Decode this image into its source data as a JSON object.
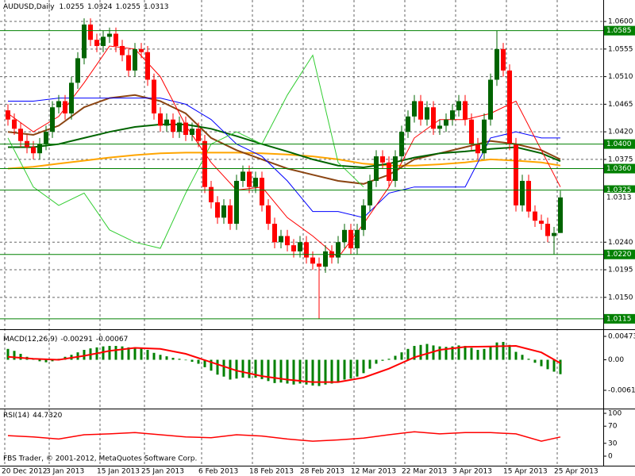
{
  "symbol": "AUDUSD,Daily",
  "copyright": "FBS Trader, © 2001-2012, MetaQuotes Software Corp.",
  "chart_data": [
    {
      "type": "candlestick",
      "categories": [
        "20 Dec 2012",
        null,
        null,
        null,
        null,
        null,
        null,
        "3 Jan 2013",
        null,
        null,
        null,
        null,
        null,
        null,
        null,
        "15 Jan 2013",
        null,
        null,
        null,
        null,
        null,
        null,
        "25 Jan 2013",
        null,
        null,
        null,
        null,
        null,
        null,
        null,
        null,
        "6 Feb 2013",
        null,
        null,
        null,
        null,
        null,
        null,
        null,
        "18 Feb 2013",
        null,
        null,
        null,
        null,
        null,
        null,
        null,
        "28 Feb 2013",
        null,
        null,
        null,
        null,
        null,
        null,
        null,
        "12 Mar 2013",
        null,
        null,
        null,
        null,
        null,
        null,
        null,
        "22 Mar 2013",
        null,
        null,
        null,
        null,
        null,
        null,
        null,
        "3 Apr 2013",
        null,
        null,
        null,
        null,
        null,
        null,
        null,
        "15 Apr 2013",
        null,
        null,
        null,
        null,
        null,
        null,
        null,
        "25 Apr 2013"
      ],
      "open": [
        1.0455,
        1.044,
        1.0425,
        1.0405,
        1.0395,
        1.0385,
        1.04,
        1.042,
        1.046,
        1.047,
        1.045,
        1.05,
        1.054,
        1.0595,
        1.057,
        1.056,
        1.0575,
        1.058,
        1.056,
        1.0545,
        1.052,
        1.0555,
        1.055,
        1.0505,
        1.045,
        1.043,
        1.044,
        1.042,
        1.0435,
        1.0415,
        1.0425,
        1.0405,
        1.033,
        1.0305,
        1.028,
        1.03,
        1.027,
        1.034,
        1.0355,
        1.033,
        1.0345,
        1.03,
        1.027,
        1.024,
        1.025,
        1.0235,
        1.0225,
        1.024,
        1.0215,
        1.0205,
        1.02,
        1.0225,
        1.0215,
        1.024,
        1.026,
        1.023,
        1.026,
        1.03,
        1.034,
        1.038,
        1.037,
        1.034,
        1.038,
        1.042,
        1.0445,
        1.047,
        1.044,
        1.046,
        1.0425,
        1.043,
        1.044,
        1.0455,
        1.047,
        1.044,
        1.04,
        1.0385,
        1.044,
        1.0505,
        1.0555,
        1.052,
        1.04,
        1.03,
        1.034,
        1.029,
        1.0275,
        1.027,
        1.025,
        1.0255
      ],
      "high": [
        1.0465,
        1.045,
        1.0435,
        1.0415,
        1.0405,
        1.041,
        1.043,
        1.047,
        1.048,
        1.048,
        1.051,
        1.055,
        1.0605,
        1.0605,
        1.058,
        1.0585,
        1.059,
        1.059,
        1.057,
        1.0555,
        1.0565,
        1.0565,
        1.056,
        1.0515,
        1.046,
        1.045,
        1.045,
        1.0445,
        1.0445,
        1.0435,
        1.0435,
        1.0415,
        1.034,
        1.0315,
        1.031,
        1.031,
        1.035,
        1.0365,
        1.0365,
        1.0355,
        1.0355,
        1.031,
        1.028,
        1.026,
        1.026,
        1.0245,
        1.025,
        1.025,
        1.0225,
        1.0215,
        1.0235,
        1.0235,
        1.025,
        1.027,
        1.027,
        1.027,
        1.031,
        1.035,
        1.039,
        1.039,
        1.038,
        1.039,
        1.043,
        1.0455,
        1.048,
        1.048,
        1.047,
        1.047,
        1.044,
        1.045,
        1.0465,
        1.048,
        1.048,
        1.045,
        1.041,
        1.045,
        1.0515,
        1.0585,
        1.0565,
        1.053,
        1.041,
        1.035,
        1.035,
        1.03,
        1.0285,
        1.028,
        1.0265,
        1.0324
      ],
      "low": [
        1.043,
        1.0415,
        1.0395,
        1.0385,
        1.0375,
        1.0375,
        1.039,
        1.041,
        1.045,
        1.044,
        1.044,
        1.049,
        1.053,
        1.056,
        1.055,
        1.055,
        1.0565,
        1.055,
        1.0535,
        1.051,
        1.051,
        1.054,
        1.0495,
        1.044,
        1.042,
        1.042,
        1.041,
        1.041,
        1.0405,
        1.0405,
        1.0395,
        1.032,
        1.0295,
        1.027,
        1.027,
        1.026,
        1.026,
        1.033,
        1.032,
        1.032,
        1.029,
        1.026,
        1.023,
        1.023,
        1.0225,
        1.0215,
        1.0215,
        1.0205,
        1.0195,
        1.0115,
        1.019,
        1.0205,
        1.0205,
        1.023,
        1.022,
        1.022,
        1.025,
        1.029,
        1.033,
        1.036,
        1.033,
        1.033,
        1.037,
        1.041,
        1.0435,
        1.043,
        1.043,
        1.0415,
        1.0415,
        1.042,
        1.043,
        1.0445,
        1.043,
        1.039,
        1.0375,
        1.0375,
        1.043,
        1.0495,
        1.051,
        1.039,
        1.029,
        1.029,
        1.028,
        1.0265,
        1.026,
        1.024,
        1.022,
        1.0255
      ],
      "close": [
        1.044,
        1.0425,
        1.0405,
        1.0395,
        1.0385,
        1.04,
        1.042,
        1.046,
        1.047,
        1.045,
        1.05,
        1.054,
        1.0595,
        1.057,
        1.056,
        1.0575,
        1.058,
        1.056,
        1.0545,
        1.052,
        1.0555,
        1.055,
        1.0505,
        1.045,
        1.043,
        1.044,
        1.042,
        1.0435,
        1.0415,
        1.0425,
        1.0405,
        1.033,
        1.0305,
        1.028,
        1.03,
        1.027,
        1.034,
        1.0355,
        1.033,
        1.0345,
        1.03,
        1.027,
        1.024,
        1.025,
        1.0235,
        1.0225,
        1.024,
        1.0215,
        1.0205,
        1.02,
        1.0225,
        1.0215,
        1.024,
        1.026,
        1.023,
        1.026,
        1.03,
        1.034,
        1.038,
        1.037,
        1.034,
        1.038,
        1.042,
        1.0445,
        1.047,
        1.044,
        1.046,
        1.0425,
        1.043,
        1.044,
        1.0455,
        1.047,
        1.044,
        1.04,
        1.0385,
        1.044,
        1.0505,
        1.0555,
        1.052,
        1.04,
        1.03,
        1.034,
        1.029,
        1.0275,
        1.027,
        1.025,
        1.0255,
        1.0313
      ],
      "up_color": "#006400",
      "down_color": "#ff0000",
      "ylim": [
        1.0098,
        1.0635
      ],
      "yticks": [
        {
          "value": 1.06,
          "label": "1.0600"
        },
        1.0555,
        {
          "value": 1.051,
          "label": "1.0510"
        },
        1.0465,
        {
          "value": 1.042,
          "label": "1.0420"
        },
        1.0375,
        {
          "value": 1.024,
          "label": "1.0240"
        },
        1.0195,
        {
          "value": 1.015,
          "label": "1.0150"
        }
      ],
      "grid": true,
      "levels": [
        1.0585,
        {
          "value": 1.04,
          "label": "1.0400"
        },
        {
          "value": 1.036,
          "label": "1.0360"
        },
        1.0325,
        {
          "value": 1.022,
          "label": "1.0220"
        },
        1.0115
      ],
      "level_color": "#008000",
      "overlay_x": [
        0,
        4,
        8,
        12,
        16,
        20,
        24,
        28,
        32,
        36,
        40,
        44,
        48,
        52,
        56,
        60,
        64,
        68,
        72,
        76,
        80,
        84,
        87
      ],
      "overlays": [
        {
          "color": "#ffa500",
          "weight": "thick",
          "values": [
            1.036,
            1.0363,
            1.0368,
            1.0373,
            1.0378,
            1.0382,
            1.0385,
            1.0386,
            1.0386,
            1.0386,
            1.0385,
            1.0383,
            1.038,
            1.0375,
            1.0368,
            1.0365,
            1.0365,
            1.0367,
            1.037,
            1.0375,
            1.0373,
            1.037,
            1.0365
          ]
        },
        {
          "color": "#8b4513",
          "weight": "thick",
          "values": [
            1.042,
            1.0415,
            1.043,
            1.046,
            1.0475,
            1.048,
            1.047,
            1.045,
            1.041,
            1.039,
            1.0375,
            1.036,
            1.035,
            1.034,
            1.0335,
            1.035,
            1.0375,
            1.0385,
            1.0395,
            1.0405,
            1.04,
            1.039,
            1.0375
          ]
        },
        {
          "color": "#006400",
          "weight": "thick",
          "values": [
            1.0395,
            1.0395,
            1.04,
            1.041,
            1.042,
            1.0428,
            1.0432,
            1.0432,
            1.0425,
            1.0413,
            1.04,
            1.0388,
            1.0375,
            1.0365,
            1.0362,
            1.0368,
            1.0378,
            1.0385,
            1.0388,
            1.0392,
            1.0395,
            1.0385,
            1.0372
          ]
        },
        {
          "color": "#0000ff",
          "weight": "thin",
          "values": [
            1.047,
            1.047,
            1.0475,
            1.0475,
            1.0475,
            1.0475,
            1.0475,
            1.0465,
            1.044,
            1.04,
            1.038,
            1.034,
            1.029,
            1.029,
            1.028,
            1.032,
            1.033,
            1.033,
            1.033,
            1.041,
            1.042,
            1.041,
            1.041
          ]
        },
        {
          "color": "#ff0000",
          "weight": "thin",
          "values": [
            1.045,
            1.042,
            1.0445,
            1.05,
            1.056,
            1.0555,
            1.051,
            1.043,
            1.037,
            1.0325,
            1.033,
            1.028,
            1.025,
            1.0215,
            1.027,
            1.033,
            1.041,
            1.044,
            1.044,
            1.045,
            1.047,
            1.039,
            1.033
          ]
        },
        {
          "color": "#32cd32",
          "weight": "thin",
          "values": [
            1.041,
            1.033,
            1.03,
            1.032,
            1.026,
            1.024,
            1.023,
            1.032,
            1.04,
            1.042,
            1.04,
            1.048,
            1.0545,
            1.037,
            1.033,
            null,
            null,
            null,
            null,
            null,
            null,
            null,
            null
          ]
        }
      ]
    },
    {
      "type": "macd",
      "title": "MACD(12,26,9)",
      "color": "#008000",
      "values": [
        0.0022,
        0.0018,
        0.0012,
        0.0006,
        0.0001,
        -0.0003,
        -0.0005,
        -0.0003,
        0.0002,
        0.0006,
        0.001,
        0.0015,
        0.002,
        0.0023,
        0.0025,
        0.0027,
        0.0028,
        0.0028,
        0.0027,
        0.0025,
        0.0025,
        0.0024,
        0.002,
        0.0014,
        0.001,
        0.0007,
        0.0004,
        0.0002,
        -0.0001,
        -0.0004,
        -0.0008,
        -0.0015,
        -0.0022,
        -0.003,
        -0.0034,
        -0.004,
        -0.0038,
        -0.0036,
        -0.0037,
        -0.0036,
        -0.0039,
        -0.0043,
        -0.0047,
        -0.0046,
        -0.0048,
        -0.005,
        -0.0048,
        -0.005,
        -0.0052,
        -0.0053,
        -0.005,
        -0.0048,
        -0.0044,
        -0.004,
        -0.0038,
        -0.0034,
        -0.0027,
        -0.0018,
        -0.0008,
        -0.0002,
        0.0002,
        0.0008,
        0.0015,
        0.0022,
        0.0028,
        0.003,
        0.0032,
        0.0029,
        0.0027,
        0.0026,
        0.0027,
        0.0029,
        0.0028,
        0.0024,
        0.002,
        0.0022,
        0.0028,
        0.0035,
        0.0036,
        0.003,
        0.0016,
        0.001,
        0.0002,
        -0.0006,
        -0.0013,
        -0.0019,
        -0.0024,
        -0.00291
      ],
      "signal": {
        "color": "#ff0000",
        "values": [
          0.0006,
          0.0002,
          0.0,
          0.0008,
          0.0018,
          0.0024,
          0.0022,
          0.0012,
          -0.0005,
          -0.0022,
          -0.0033,
          -0.004,
          -0.0045,
          -0.0045,
          -0.0036,
          -0.0018,
          0.0005,
          0.002,
          0.0026,
          0.0027,
          0.0028,
          0.0015,
          -0.00067
        ]
      },
      "ylim": [
        -0.00617,
        0.00473
      ],
      "yticks": [
        0.00473,
        {
          "value": 0,
          "label": "0.00"
        },
        -0.00617
      ]
    },
    {
      "type": "line",
      "title": "RSI(14)",
      "color": "#ff0000",
      "values": [
        48,
        45,
        40,
        50,
        52,
        55,
        50,
        45,
        43,
        50,
        47,
        40,
        35,
        38,
        42,
        50,
        57,
        52,
        55,
        55,
        52,
        35,
        44.732
      ],
      "value_label": "44.7320",
      "ylim": [
        0,
        100
      ],
      "yticks": [
        100,
        70,
        30,
        0
      ]
    }
  ]
}
